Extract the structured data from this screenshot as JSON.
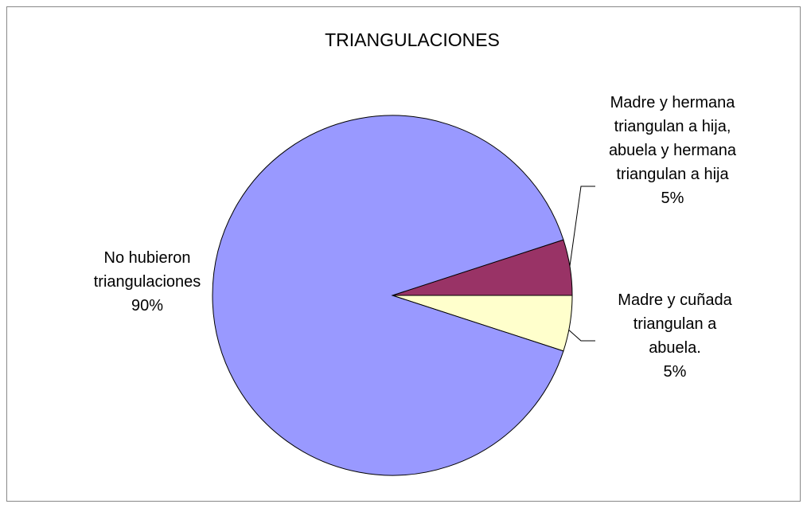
{
  "chart_data": {
    "type": "pie",
    "title": "TRIANGULACIONES",
    "categories": [
      "Madre y hermana triangulan a hija, abuela y hermana triangulan a hija",
      "Madre y cuñada triangulan a abuela.",
      "No hubieron triangulaciones"
    ],
    "values": [
      5,
      5,
      90
    ],
    "value_labels": [
      "5%",
      "5%",
      "90%"
    ],
    "colors": [
      "#993366",
      "#ffffcc",
      "#9999ff"
    ]
  }
}
